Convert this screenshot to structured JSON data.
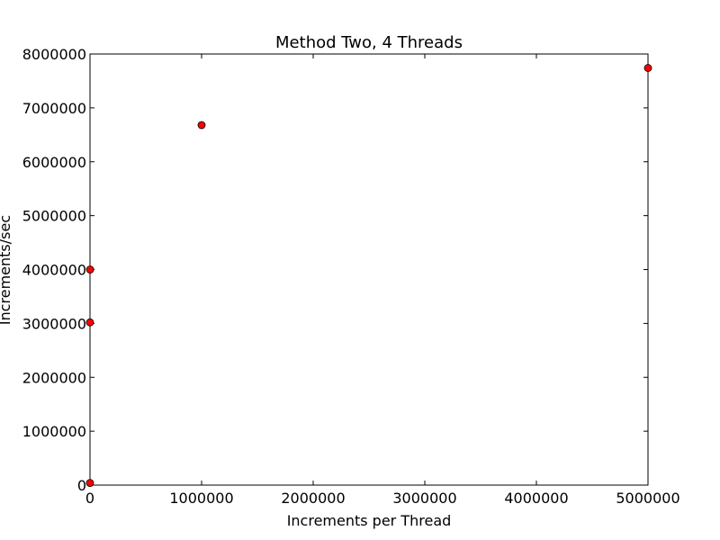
{
  "chart_data": {
    "type": "scatter",
    "title": "Method Two, 4 Threads",
    "xlabel": "Increments per Thread",
    "ylabel": "Increments/sec",
    "xlim": [
      0,
      5000000
    ],
    "ylim": [
      0,
      8000000
    ],
    "xticks": [
      0,
      1000000,
      2000000,
      3000000,
      4000000,
      5000000
    ],
    "yticks": [
      0,
      1000000,
      2000000,
      3000000,
      4000000,
      5000000,
      6000000,
      7000000,
      8000000
    ],
    "grid": false,
    "marker_color": "#ff0000",
    "points": [
      {
        "x": 10,
        "y": 40000
      },
      {
        "x": 100,
        "y": 3020000
      },
      {
        "x": 1000,
        "y": 4000000
      },
      {
        "x": 1000000,
        "y": 6680000
      },
      {
        "x": 5000000,
        "y": 7740000
      }
    ]
  }
}
